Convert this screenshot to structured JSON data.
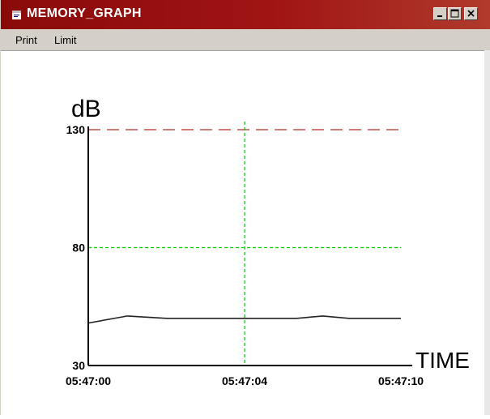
{
  "window": {
    "title": "MEMORY_GRAPH",
    "controls": {
      "minimize": "minimize-icon",
      "maximize": "maximize-icon",
      "close": "close-icon"
    }
  },
  "menu": {
    "items": [
      "Print",
      "Limit"
    ]
  },
  "colors": {
    "titlebar": "#8a0a0a",
    "limit_line": "#c0504d",
    "grid": "#00cc00",
    "trace": "#222222"
  },
  "chart_data": {
    "type": "line",
    "ylabel": "dB",
    "xlabel": "TIME",
    "ylim": [
      30,
      130
    ],
    "y_ticks": [
      "130",
      "80",
      "30"
    ],
    "x_ticks": [
      "05:47:00",
      "05:47:04",
      "05:47:10"
    ],
    "limit_value": 130,
    "grid": {
      "horizontal_at": 80,
      "vertical_at": "05:47:04"
    },
    "series": [
      {
        "x": [
          "05:47:00",
          "05:47:01",
          "05:47:02",
          "05:47:03",
          "05:47:04",
          "05:47:05",
          "05:47:06",
          "05:47:07",
          "05:47:08",
          "05:47:09",
          "05:47:10"
        ],
        "values": [
          48,
          51,
          50,
          50,
          50,
          50,
          50,
          51,
          50,
          50,
          50
        ]
      }
    ]
  }
}
